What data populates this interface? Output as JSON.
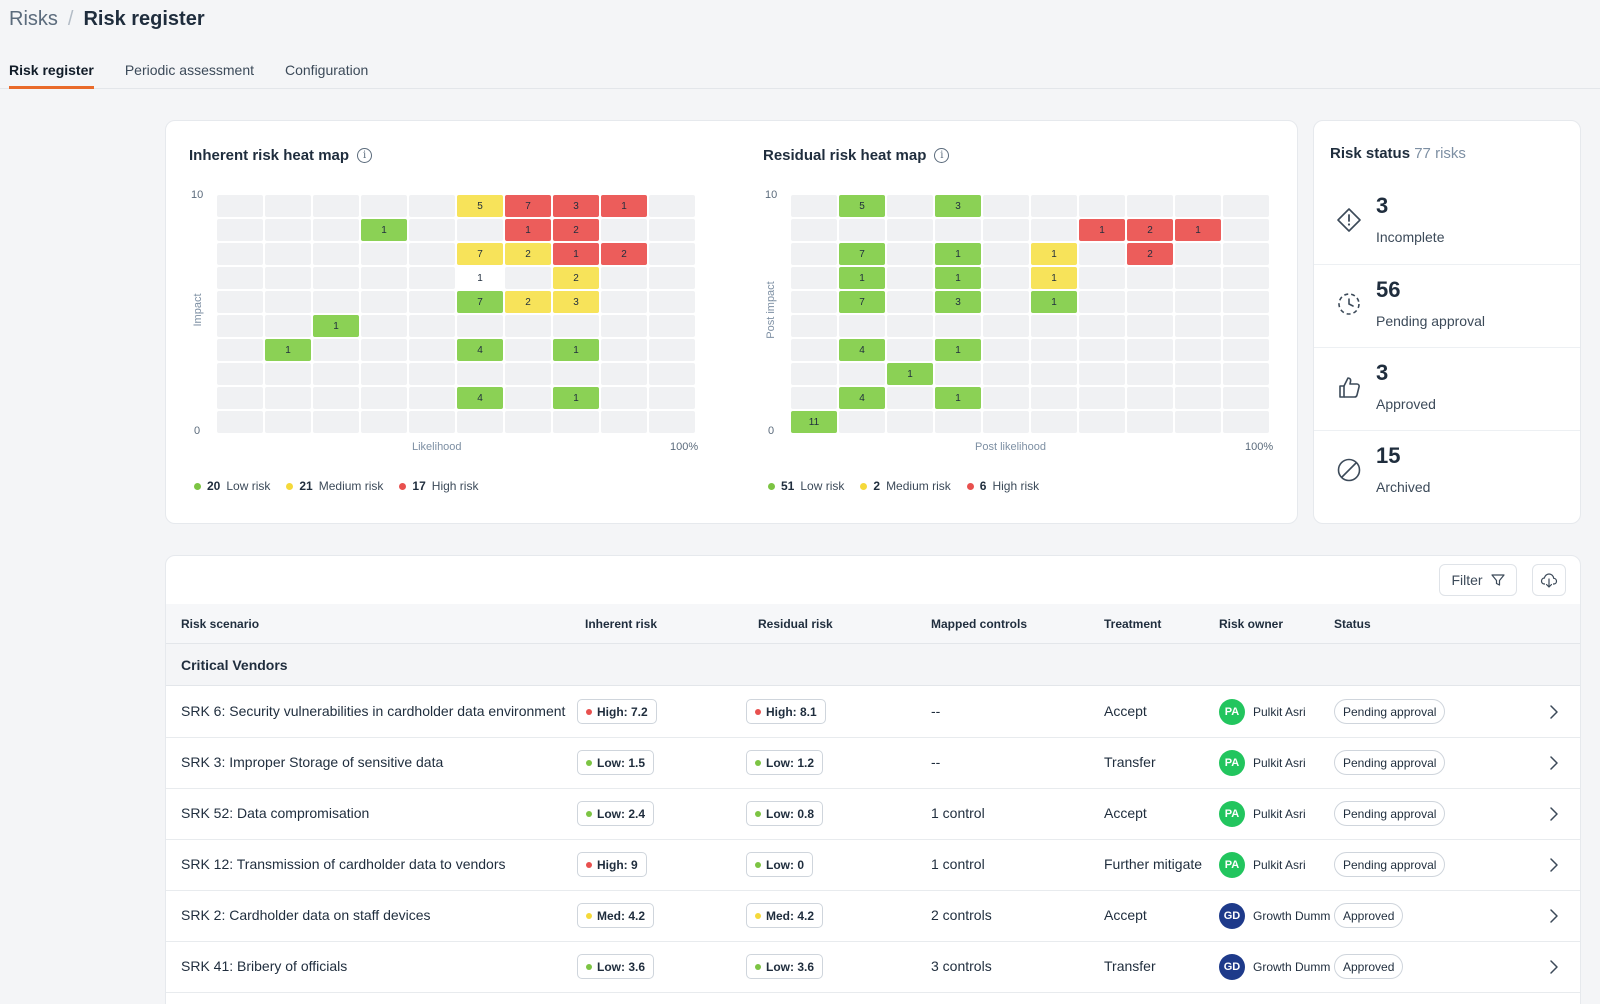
{
  "breadcrumb": {
    "parent": "Risks",
    "separator": "/",
    "current": "Risk register"
  },
  "tabs": [
    {
      "label": "Risk register",
      "active": true
    },
    {
      "label": "Periodic assessment",
      "active": false
    },
    {
      "label": "Configuration",
      "active": false
    }
  ],
  "inherent": {
    "title": "Inherent risk heat map",
    "y_max": "10",
    "y_min": "0",
    "y_label": "Impact",
    "x_label": "Likelihood",
    "x_max": "100%",
    "legend": [
      {
        "count": "20",
        "label": "Low risk",
        "color": "#7cc443"
      },
      {
        "count": "21",
        "label": "Medium risk",
        "color": "#f5d93a"
      },
      {
        "count": "17",
        "label": "High risk",
        "color": "#e8504e"
      }
    ],
    "cells": [
      {
        "r": 0,
        "c": 5,
        "v": "5",
        "t": "med"
      },
      {
        "r": 0,
        "c": 6,
        "v": "7",
        "t": "high"
      },
      {
        "r": 0,
        "c": 7,
        "v": "3",
        "t": "high"
      },
      {
        "r": 0,
        "c": 8,
        "v": "1",
        "t": "high"
      },
      {
        "r": 1,
        "c": 3,
        "v": "1",
        "t": "low"
      },
      {
        "r": 1,
        "c": 6,
        "v": "1",
        "t": "high"
      },
      {
        "r": 1,
        "c": 7,
        "v": "2",
        "t": "high"
      },
      {
        "r": 2,
        "c": 5,
        "v": "7",
        "t": "med"
      },
      {
        "r": 2,
        "c": 6,
        "v": "2",
        "t": "med"
      },
      {
        "r": 2,
        "c": 7,
        "v": "1",
        "t": "high"
      },
      {
        "r": 2,
        "c": 8,
        "v": "2",
        "t": "high"
      },
      {
        "r": 3,
        "c": 5,
        "v": "1",
        "t": "white"
      },
      {
        "r": 3,
        "c": 7,
        "v": "2",
        "t": "med"
      },
      {
        "r": 4,
        "c": 5,
        "v": "7",
        "t": "low"
      },
      {
        "r": 4,
        "c": 6,
        "v": "2",
        "t": "med"
      },
      {
        "r": 4,
        "c": 7,
        "v": "3",
        "t": "med"
      },
      {
        "r": 5,
        "c": 2,
        "v": "1",
        "t": "low"
      },
      {
        "r": 6,
        "c": 1,
        "v": "1",
        "t": "low"
      },
      {
        "r": 6,
        "c": 5,
        "v": "4",
        "t": "low"
      },
      {
        "r": 6,
        "c": 7,
        "v": "1",
        "t": "low"
      },
      {
        "r": 8,
        "c": 5,
        "v": "4",
        "t": "low"
      },
      {
        "r": 8,
        "c": 7,
        "v": "1",
        "t": "low"
      }
    ]
  },
  "residual": {
    "title": "Residual risk heat map",
    "y_max": "10",
    "y_min": "0",
    "y_label": "Post impact",
    "x_label": "Post likelihood",
    "x_max": "100%",
    "legend": [
      {
        "count": "51",
        "label": "Low risk",
        "color": "#7cc443"
      },
      {
        "count": "2",
        "label": "Medium risk",
        "color": "#f5d93a"
      },
      {
        "count": "6",
        "label": "High risk",
        "color": "#e8504e"
      }
    ],
    "cells": [
      {
        "r": 0,
        "c": 1,
        "v": "5",
        "t": "low"
      },
      {
        "r": 0,
        "c": 3,
        "v": "3",
        "t": "low"
      },
      {
        "r": 1,
        "c": 6,
        "v": "1",
        "t": "high"
      },
      {
        "r": 1,
        "c": 7,
        "v": "2",
        "t": "high"
      },
      {
        "r": 1,
        "c": 8,
        "v": "1",
        "t": "high"
      },
      {
        "r": 2,
        "c": 1,
        "v": "7",
        "t": "low"
      },
      {
        "r": 2,
        "c": 3,
        "v": "1",
        "t": "low"
      },
      {
        "r": 2,
        "c": 5,
        "v": "1",
        "t": "med"
      },
      {
        "r": 2,
        "c": 7,
        "v": "2",
        "t": "high"
      },
      {
        "r": 3,
        "c": 1,
        "v": "1",
        "t": "low"
      },
      {
        "r": 3,
        "c": 3,
        "v": "1",
        "t": "low"
      },
      {
        "r": 3,
        "c": 5,
        "v": "1",
        "t": "med"
      },
      {
        "r": 4,
        "c": 1,
        "v": "7",
        "t": "low"
      },
      {
        "r": 4,
        "c": 3,
        "v": "3",
        "t": "low"
      },
      {
        "r": 4,
        "c": 5,
        "v": "1",
        "t": "low"
      },
      {
        "r": 6,
        "c": 1,
        "v": "4",
        "t": "low"
      },
      {
        "r": 6,
        "c": 3,
        "v": "1",
        "t": "low"
      },
      {
        "r": 7,
        "c": 2,
        "v": "1",
        "t": "low"
      },
      {
        "r": 8,
        "c": 1,
        "v": "4",
        "t": "low"
      },
      {
        "r": 8,
        "c": 3,
        "v": "1",
        "t": "low"
      },
      {
        "r": 9,
        "c": 0,
        "v": "11",
        "t": "low"
      }
    ]
  },
  "risk_status": {
    "title": "Risk status",
    "total": "77 risks",
    "items": [
      {
        "count": "3",
        "label": "Incomplete",
        "icon": "incomplete-icon"
      },
      {
        "count": "56",
        "label": "Pending approval",
        "icon": "pending-icon"
      },
      {
        "count": "3",
        "label": "Approved",
        "icon": "thumbs-up-icon"
      },
      {
        "count": "15",
        "label": "Archived",
        "icon": "archived-icon"
      }
    ]
  },
  "toolbar": {
    "filter_label": "Filter"
  },
  "table": {
    "columns": [
      "Risk scenario",
      "Inherent risk",
      "Residual risk",
      "Mapped controls",
      "Treatment",
      "Risk owner",
      "Status"
    ],
    "group": "Critical Vendors",
    "rows": [
      {
        "scenario": "SRK 6: Security vulnerabilities in cardholder data environment",
        "inherent": "High: 7.2",
        "inherent_level": "high",
        "residual": "High: 8.1",
        "residual_level": "high",
        "controls": "--",
        "treatment": "Accept",
        "owner_initials": "PA",
        "owner": "Pulkit Asri",
        "owner_color": "#22c55e",
        "status": "Pending approval"
      },
      {
        "scenario": "SRK 3: Improper Storage of sensitive data",
        "inherent": "Low: 1.5",
        "inherent_level": "low",
        "residual": "Low: 1.2",
        "residual_level": "low",
        "controls": "--",
        "treatment": "Transfer",
        "owner_initials": "PA",
        "owner": "Pulkit Asri",
        "owner_color": "#22c55e",
        "status": "Pending approval"
      },
      {
        "scenario": "SRK 52: Data compromisation",
        "inherent": "Low: 2.4",
        "inherent_level": "low",
        "residual": "Low: 0.8",
        "residual_level": "low",
        "controls": "1 control",
        "treatment": "Accept",
        "owner_initials": "PA",
        "owner": "Pulkit Asri",
        "owner_color": "#22c55e",
        "status": "Pending approval"
      },
      {
        "scenario": "SRK 12: Transmission of cardholder data to vendors",
        "inherent": "High: 9",
        "inherent_level": "high",
        "residual": "Low: 0",
        "residual_level": "low",
        "controls": "1 control",
        "treatment": "Further mitigate",
        "owner_initials": "PA",
        "owner": "Pulkit Asri",
        "owner_color": "#22c55e",
        "status": "Pending approval"
      },
      {
        "scenario": "SRK 2: Cardholder data on staff devices",
        "inherent": "Med: 4.2",
        "inherent_level": "med",
        "residual": "Med: 4.2",
        "residual_level": "med",
        "controls": "2 controls",
        "treatment": "Accept",
        "owner_initials": "GD",
        "owner": "Growth Dumm",
        "owner_color": "#1e3a8a",
        "status": "Approved"
      },
      {
        "scenario": "SRK 41: Bribery of officials",
        "inherent": "Low: 3.6",
        "inherent_level": "low",
        "residual": "Low: 3.6",
        "residual_level": "low",
        "controls": "3 controls",
        "treatment": "Transfer",
        "owner_initials": "GD",
        "owner": "Growth Dumm",
        "owner_color": "#1e3a8a",
        "status": "Approved"
      }
    ]
  },
  "colors": {
    "low": "#7cc443",
    "med": "#f5d93a",
    "high": "#e8504e",
    "accent": "#e96a2a"
  }
}
